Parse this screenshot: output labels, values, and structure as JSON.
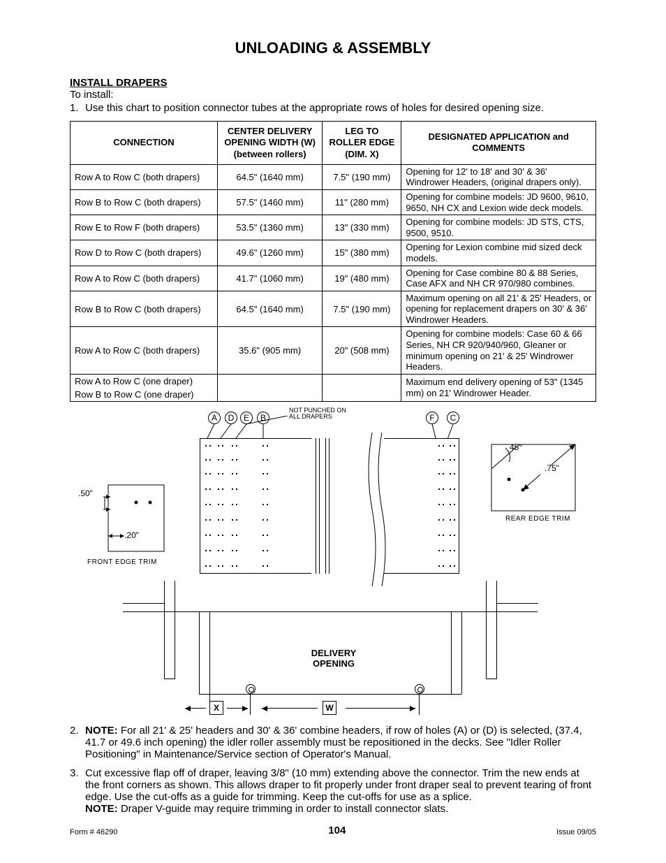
{
  "title": "UNLOADING & ASSEMBLY",
  "section_heading": "INSTALL DRAPERS",
  "to_install": "To install:",
  "step1_num": "1.",
  "step1_text": "Use this chart to position connector tubes at the appropriate rows of holes for desired opening size.",
  "table": {
    "headers": {
      "connection": "CONNECTION",
      "center": "CENTER DELIVERY OPENING WIDTH (W) (between rollers)",
      "leg": "LEG TO ROLLER EDGE (DIM. X)",
      "app": "DESIGNATED APPLICATION and COMMENTS"
    },
    "rows": [
      {
        "conn": "Row A to Row C (both drapers)",
        "center": "64.5\" (1640 mm)",
        "leg": "7.5\" (190 mm)",
        "app": "Opening for 12' to 18' and 30' & 36' Windrower Headers, (original drapers only)."
      },
      {
        "conn": "Row B to Row C (both drapers)",
        "center": "57.5\" (1460 mm)",
        "leg": "11\" (280 mm)",
        "app": "Opening for combine models: JD 9600, 9610, 9650, NH CX and Lexion wide deck models."
      },
      {
        "conn": "Row E to Row F (both drapers)",
        "center": "53.5\" (1360 mm)",
        "leg": "13\" (330 mm)",
        "app": "Opening for combine models: JD STS, CTS, 9500, 9510."
      },
      {
        "conn": "Row D to Row C (both drapers)",
        "center": "49.6\" (1260 mm)",
        "leg": "15\" (380 mm)",
        "app": "Opening for Lexion combine mid sized deck models."
      },
      {
        "conn": "Row A to Row C (both drapers)",
        "center": "41.7\" (1060 mm)",
        "leg": "19\" (480 mm)",
        "app": "Opening for Case combine 80 & 88 Series, Case AFX and NH CR 970/980 combines."
      },
      {
        "conn": "Row B to Row C (both drapers)",
        "center": "64.5\" (1640 mm)",
        "leg": "7.5\" (190 mm)",
        "app": "Maximum opening on all 21' & 25' Headers, or opening for replacement drapers on 30' & 36' Windrower Headers."
      },
      {
        "conn": "Row A to Row C (both drapers)",
        "center": "35.6\" (905 mm)",
        "leg": "20\" (508 mm)",
        "app": "Opening for combine models: Case 60 & 66 Series, NH CR 920/940/960, Gleaner or minimum opening on 21' & 25' Windrower Headers."
      },
      {
        "conn": "Row A to Row C (one draper)",
        "center": "",
        "leg": "",
        "app": "Maximum end delivery opening of 53\" (1345 mm) on 21' Windrower Header."
      },
      {
        "conn": "Row B to Row C (one draper)",
        "center": "",
        "leg": "",
        "app": ""
      }
    ]
  },
  "diagram": {
    "labels_left": [
      "A",
      "D",
      "E",
      "B"
    ],
    "labels_right": [
      "F",
      "C"
    ],
    "punch_note": "NOT PUNCHED ON\nALL DRAPERS",
    "front_dim_a": ".50\"",
    "front_dim_b": ".20\"",
    "front_caption": "FRONT EDGE TRIM",
    "rear_angle": "45°",
    "rear_dim": ".75\"",
    "rear_caption": "REAR EDGE TRIM"
  },
  "lower": {
    "delivery": "DELIVERY OPENING",
    "x": "X",
    "w": "W"
  },
  "step2_num": "2.",
  "step2_note": "NOTE:",
  "step2_text": " For all 21' & 25' headers and 30' & 36' combine headers, if row of holes (A) or (D) is selected, (37.4, 41.7 or 49.6 inch opening) the idler roller assembly must be repositioned in the decks. See \"Idler Roller Positioning\" in Maintenance/Service section of Operator's Manual.",
  "step3_num": "3.",
  "step3_text": "Cut excessive flap off of draper, leaving 3/8\" (10 mm) extending above the connector. Trim the new ends at the front corners as shown. This allows draper to fit properly under front draper seal to prevent tearing of front edge. Use the cut-offs as a guide for trimming. Keep the cut-offs for use as a splice.",
  "step3_note": "NOTE:",
  "step3_note_text": " Draper V-guide may require trimming in order to install connector slats.",
  "footer": {
    "form": "Form # 46290",
    "page": "104",
    "issue": "Issue 09/05"
  }
}
